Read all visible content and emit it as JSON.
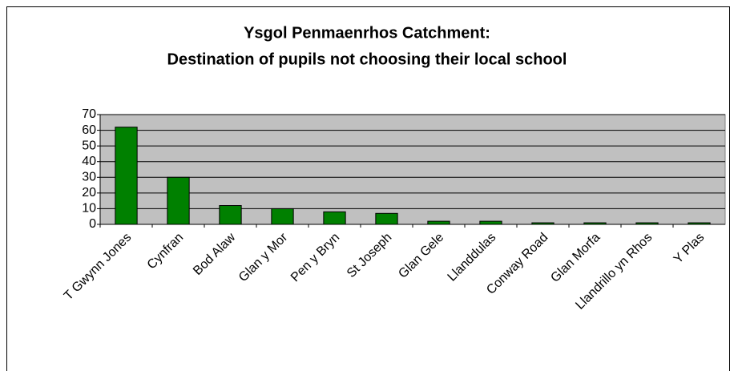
{
  "chart_data": {
    "type": "bar",
    "title": [
      "Ysgol Penmaenrhos Catchment:",
      "Destination of pupils not choosing their local school"
    ],
    "categories": [
      "T Gwynn Jones",
      "Cynfran",
      "Bod Alaw",
      "Glan y Mor",
      "Pen y Bryn",
      "St Joseph",
      "Glan Gele",
      "Llanddulas",
      "Conway Road",
      "Glan Morfa",
      "Llandrillo yn Rhos",
      "Y Plas"
    ],
    "values": [
      62,
      30,
      12,
      10,
      8,
      7,
      2,
      2,
      1,
      1,
      1,
      1
    ],
    "color": "#008000",
    "plot_background": "#c0c0c0",
    "ylim": [
      0,
      70
    ],
    "yticks": [
      0,
      10,
      20,
      30,
      40,
      50,
      60,
      70
    ],
    "grid": true
  }
}
